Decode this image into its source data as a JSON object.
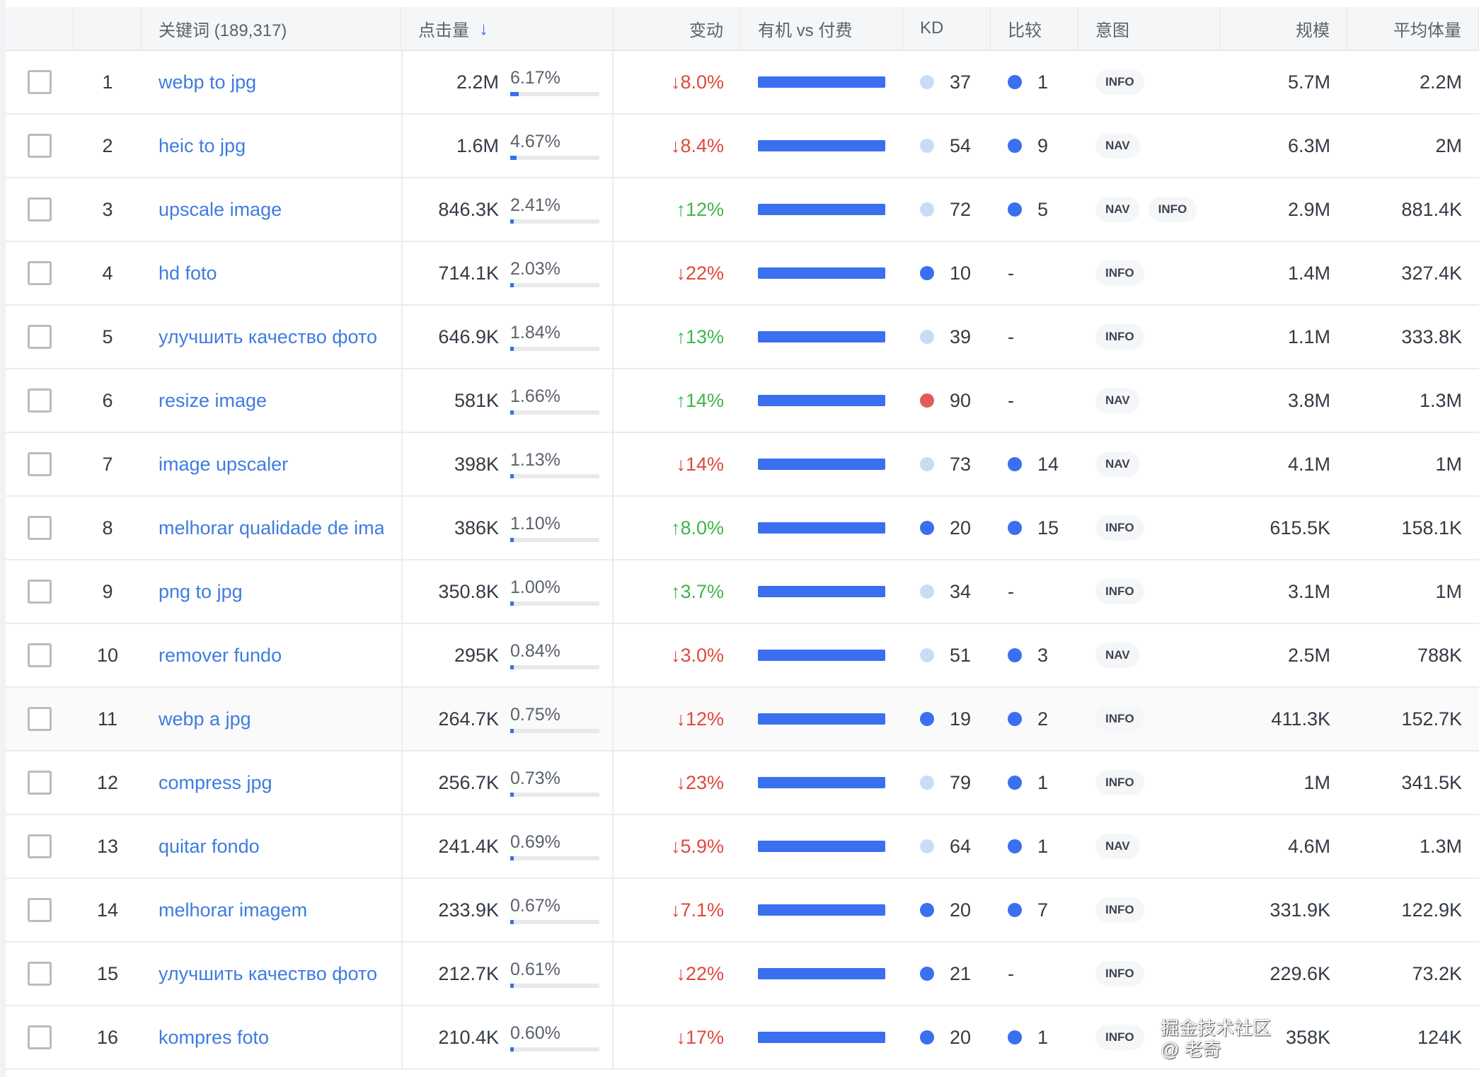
{
  "header": {
    "keyword": "关键词 (189,317)",
    "clicks": "点击量",
    "sort_icon": "arrow-down-icon",
    "change": "变动",
    "organic_paid": "有机 vs 付费",
    "kd": "KD",
    "compare": "比较",
    "intent": "意图",
    "scale": "规模",
    "avg_volume": "平均体量"
  },
  "colors": {
    "link": "#3f7ce0",
    "down": "#e0483c",
    "up": "#3fb64a",
    "bar": "#3a6ff0",
    "kd_easy": "#3a6ff0",
    "kd_mid": "#c9dcf7",
    "kd_hard": "#e25b5b"
  },
  "rows": [
    {
      "n": "1",
      "kw": "webp to jpg",
      "clicks": "2.2M",
      "pct": "6.17%",
      "dir": "down",
      "chg": "8.0%",
      "kd": "37",
      "cmp": "1",
      "intent": [
        "INFO"
      ],
      "scale": "5.7M",
      "avg": "2.2M"
    },
    {
      "n": "2",
      "kw": "heic to jpg",
      "clicks": "1.6M",
      "pct": "4.67%",
      "dir": "down",
      "chg": "8.4%",
      "kd": "54",
      "cmp": "9",
      "intent": [
        "NAV"
      ],
      "scale": "6.3M",
      "avg": "2M"
    },
    {
      "n": "3",
      "kw": "upscale image",
      "clicks": "846.3K",
      "pct": "2.41%",
      "dir": "up",
      "chg": "12%",
      "kd": "72",
      "cmp": "5",
      "intent": [
        "NAV",
        "INFO"
      ],
      "scale": "2.9M",
      "avg": "881.4K"
    },
    {
      "n": "4",
      "kw": "hd foto",
      "clicks": "714.1K",
      "pct": "2.03%",
      "dir": "down",
      "chg": "22%",
      "kd": "10",
      "cmp": "-",
      "intent": [
        "INFO"
      ],
      "scale": "1.4M",
      "avg": "327.4K"
    },
    {
      "n": "5",
      "kw": "улучшить качество фото",
      "clicks": "646.9K",
      "pct": "1.84%",
      "dir": "up",
      "chg": "13%",
      "kd": "39",
      "cmp": "-",
      "intent": [
        "INFO"
      ],
      "scale": "1.1M",
      "avg": "333.8K"
    },
    {
      "n": "6",
      "kw": "resize image",
      "clicks": "581K",
      "pct": "1.66%",
      "dir": "up",
      "chg": "14%",
      "kd": "90",
      "cmp": "-",
      "intent": [
        "NAV"
      ],
      "scale": "3.8M",
      "avg": "1.3M"
    },
    {
      "n": "7",
      "kw": "image upscaler",
      "clicks": "398K",
      "pct": "1.13%",
      "dir": "down",
      "chg": "14%",
      "kd": "73",
      "cmp": "14",
      "intent": [
        "NAV"
      ],
      "scale": "4.1M",
      "avg": "1M"
    },
    {
      "n": "8",
      "kw": "melhorar qualidade de imagem",
      "clicks": "386K",
      "pct": "1.10%",
      "dir": "up",
      "chg": "8.0%",
      "kd": "20",
      "cmp": "15",
      "intent": [
        "INFO"
      ],
      "scale": "615.5K",
      "avg": "158.1K"
    },
    {
      "n": "9",
      "kw": "png to jpg",
      "clicks": "350.8K",
      "pct": "1.00%",
      "dir": "up",
      "chg": "3.7%",
      "kd": "34",
      "cmp": "-",
      "intent": [
        "INFO"
      ],
      "scale": "3.1M",
      "avg": "1M"
    },
    {
      "n": "10",
      "kw": "remover fundo",
      "clicks": "295K",
      "pct": "0.84%",
      "dir": "down",
      "chg": "3.0%",
      "kd": "51",
      "cmp": "3",
      "intent": [
        "NAV"
      ],
      "scale": "2.5M",
      "avg": "788K"
    },
    {
      "n": "11",
      "kw": "webp a jpg",
      "clicks": "264.7K",
      "pct": "0.75%",
      "dir": "down",
      "chg": "12%",
      "kd": "19",
      "cmp": "2",
      "intent": [
        "INFO"
      ],
      "scale": "411.3K",
      "avg": "152.7K"
    },
    {
      "n": "12",
      "kw": "compress jpg",
      "clicks": "256.7K",
      "pct": "0.73%",
      "dir": "down",
      "chg": "23%",
      "kd": "79",
      "cmp": "1",
      "intent": [
        "INFO"
      ],
      "scale": "1M",
      "avg": "341.5K"
    },
    {
      "n": "13",
      "kw": "quitar fondo",
      "clicks": "241.4K",
      "pct": "0.69%",
      "dir": "down",
      "chg": "5.9%",
      "kd": "64",
      "cmp": "1",
      "intent": [
        "NAV"
      ],
      "scale": "4.6M",
      "avg": "1.3M"
    },
    {
      "n": "14",
      "kw": "melhorar imagem",
      "clicks": "233.9K",
      "pct": "0.67%",
      "dir": "down",
      "chg": "7.1%",
      "kd": "20",
      "cmp": "7",
      "intent": [
        "INFO"
      ],
      "scale": "331.9K",
      "avg": "122.9K"
    },
    {
      "n": "15",
      "kw": "улучшить качество фото",
      "clicks": "212.7K",
      "pct": "0.61%",
      "dir": "down",
      "chg": "22%",
      "kd": "21",
      "cmp": "-",
      "intent": [
        "INFO"
      ],
      "scale": "229.6K",
      "avg": "73.2K"
    },
    {
      "n": "16",
      "kw": "kompres foto",
      "clicks": "210.4K",
      "pct": "0.60%",
      "dir": "down",
      "chg": "17%",
      "kd": "20",
      "cmp": "1",
      "intent": [
        "INFO"
      ],
      "scale": "358K",
      "avg": "124K"
    }
  ],
  "watermark": "掘金技术社区 @ 老奇"
}
